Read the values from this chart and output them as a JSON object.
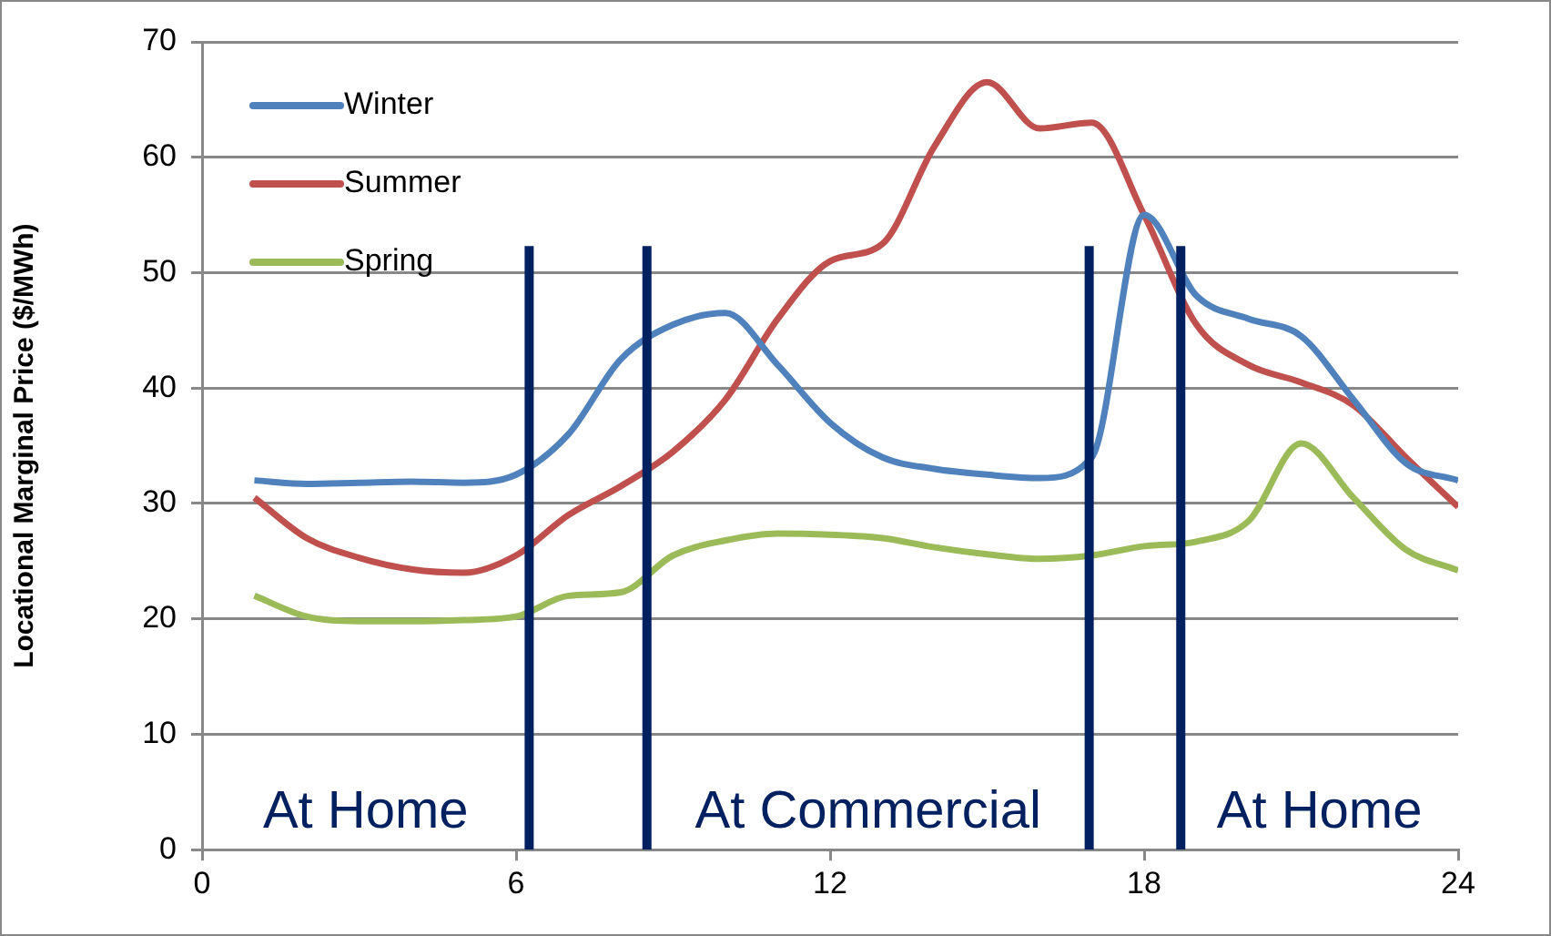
{
  "chart_data": {
    "type": "line",
    "ylabel": "Locational Marginal Price ($/MWh)",
    "x": [
      1,
      2,
      3,
      4,
      5,
      6,
      7,
      8,
      9,
      10,
      11,
      12,
      13,
      14,
      15,
      16,
      17,
      18,
      19,
      20,
      21,
      22,
      23,
      24
    ],
    "xlim": [
      0,
      24
    ],
    "xticks": [
      0,
      6,
      12,
      18,
      24
    ],
    "ylim": [
      0,
      70
    ],
    "yticks": [
      0,
      10,
      20,
      30,
      40,
      50,
      60,
      70
    ],
    "grid": "y",
    "legend": "top left",
    "marker": "none",
    "line_style": "solid",
    "series": [
      {
        "name": "Winter",
        "color": "#4f81bd",
        "values": [
          32,
          31.7,
          31.8,
          31.9,
          31.8,
          32.5,
          36,
          42.5,
          45.5,
          46.5,
          42,
          37,
          34,
          33,
          32.5,
          32.2,
          34,
          55,
          48,
          46,
          44.5,
          39,
          33.5,
          32
        ]
      },
      {
        "name": "Summer",
        "color": "#c0504d",
        "values": [
          30.5,
          27,
          25.3,
          24.3,
          24,
          25.5,
          29,
          31.5,
          34.5,
          39,
          46,
          51,
          52.5,
          61,
          66.5,
          62.5,
          63,
          55,
          45.5,
          42,
          40.5,
          38.5,
          34,
          29.7
        ]
      },
      {
        "name": "Spring",
        "color": "#9bbb59",
        "values": [
          22,
          20.2,
          19.8,
          19.8,
          19.9,
          20.2,
          22,
          22.3,
          25.5,
          26.8,
          27.4,
          27.3,
          27,
          26.2,
          25.6,
          25.2,
          25.5,
          26.3,
          26.7,
          28.5,
          35.2,
          30.5,
          26,
          24.2
        ]
      },
      {
        "type": "line",
        "color": "#002060",
        "x": [
          6.25,
          6.25
        ],
        "values": [
          0,
          52.3
        ]
      },
      {
        "type": "line",
        "color": "#002060",
        "x": [
          8.5,
          8.5
        ],
        "values": [
          0,
          52.3
        ]
      },
      {
        "type": "line",
        "color": "#002060",
        "x": [
          16.95,
          16.95
        ],
        "values": [
          0,
          52.3
        ]
      },
      {
        "type": "line",
        "color": "#002060",
        "x": [
          18.7,
          18.7
        ],
        "values": [
          0,
          52.3
        ]
      }
    ],
    "annotations": [
      "At Home",
      "At Commercial",
      "At Home"
    ]
  }
}
